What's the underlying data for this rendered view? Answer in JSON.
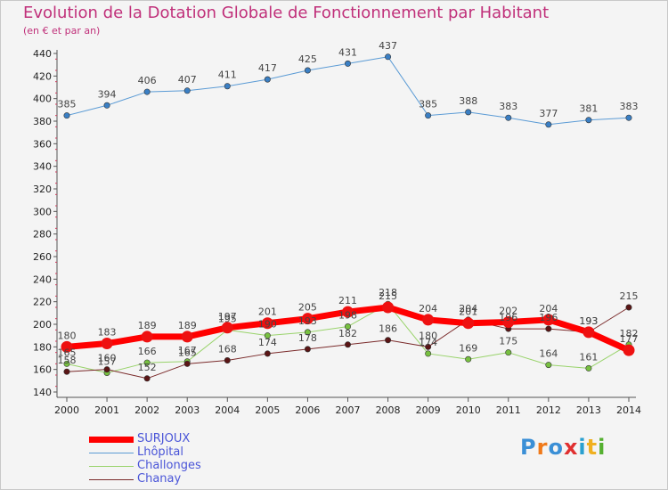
{
  "title": "Evolution de la Dotation Globale de Fonctionnement par Habitant",
  "subtitle": "(en € et par an)",
  "logo": {
    "text": "Proxiti",
    "colors": [
      "#3a8fd6",
      "#f07a1a",
      "#3a8fd6",
      "#e03030",
      "#2aa0d0",
      "#f0b020",
      "#55b030"
    ]
  },
  "chart_data": {
    "type": "line",
    "x": [
      2000,
      2001,
      2002,
      2003,
      2004,
      2005,
      2006,
      2007,
      2008,
      2009,
      2010,
      2011,
      2012,
      2013,
      2014
    ],
    "ylim": [
      140,
      440
    ],
    "yticks": [
      140,
      160,
      180,
      200,
      220,
      240,
      260,
      280,
      300,
      320,
      340,
      360,
      380,
      400,
      420,
      440
    ],
    "grid": false,
    "legend_position": "bottom-left",
    "series": [
      {
        "name": "Lhôpital",
        "color": "#5b9bd5",
        "marker": "#3a7fc4",
        "width": 1,
        "values": [
          385,
          394,
          406,
          407,
          411,
          417,
          425,
          431,
          437,
          385,
          388,
          383,
          377,
          381,
          383
        ]
      },
      {
        "name": "Challonges",
        "color": "#99d36b",
        "marker": "#77c040",
        "width": 1,
        "values": [
          165,
          157,
          166,
          167,
          195,
          190,
          193,
          198,
          218,
          174,
          169,
          175,
          164,
          161,
          182
        ]
      },
      {
        "name": "Chanay",
        "color": "#7a2a2a",
        "marker": "#5a1515",
        "width": 1,
        "values": [
          158,
          160,
          152,
          165,
          168,
          174,
          178,
          182,
          186,
          180,
          204,
          196,
          196,
          193,
          215
        ]
      },
      {
        "name": "SURJOUX",
        "color": "#ff0000",
        "marker": "#ee1111",
        "width": 7,
        "values": [
          180,
          183,
          189,
          189,
          197,
          201,
          205,
          211,
          215,
          204,
          201,
          202,
          204,
          193,
          177
        ]
      }
    ],
    "legend": [
      {
        "name": "SURJOUX",
        "color": "#ff0000",
        "width": 7
      },
      {
        "name": "Lhôpital",
        "color": "#5b9bd5",
        "width": 1
      },
      {
        "name": "Challonges",
        "color": "#99d36b",
        "width": 1
      },
      {
        "name": "Chanay",
        "color": "#7a2a2a",
        "width": 1
      }
    ]
  }
}
